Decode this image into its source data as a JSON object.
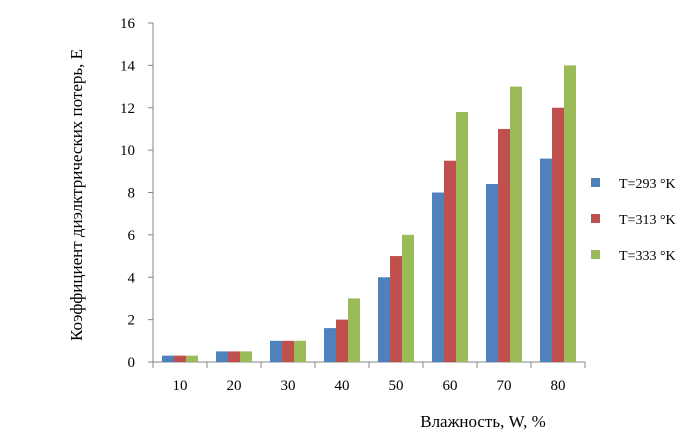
{
  "chart_data": {
    "type": "bar",
    "title": "",
    "xlabel": "Влажность, W, %",
    "ylabel": "Коэффициент диэлктрических потерь, E",
    "categories": [
      "10",
      "20",
      "30",
      "40",
      "50",
      "60",
      "70",
      "80"
    ],
    "ylim": [
      0,
      16
    ],
    "yticks": [
      "0",
      "2",
      "4",
      "6",
      "8",
      "10",
      "12",
      "14",
      "16"
    ],
    "grid": false,
    "legend_position": "right",
    "series": [
      {
        "name": "T=293 °K",
        "color": "#4f81bd",
        "values": [
          0.3,
          0.5,
          1.0,
          1.6,
          4.0,
          8.0,
          8.4,
          9.6
        ]
      },
      {
        "name": "T=313 °K",
        "color": "#c0504d",
        "values": [
          0.3,
          0.5,
          1.0,
          2.0,
          5.0,
          9.5,
          11.0,
          12.0
        ]
      },
      {
        "name": "T=333 °K",
        "color": "#9bbb59",
        "values": [
          0.3,
          0.5,
          1.0,
          3.0,
          6.0,
          11.8,
          13.0,
          14.0
        ]
      }
    ]
  }
}
